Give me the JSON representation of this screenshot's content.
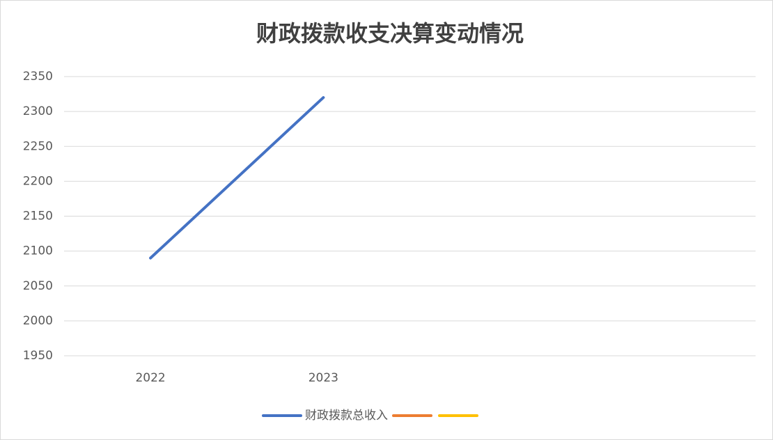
{
  "chart_data": {
    "type": "line",
    "title": "财政拨款收支决算变动情况",
    "categories": [
      "2022",
      "2023",
      null,
      null
    ],
    "series": [
      {
        "name": "财政拨款总收入",
        "color": "#4472c4",
        "values": [
          2090,
          2320,
          null,
          null
        ]
      },
      {
        "color": "#ed7d31",
        "values": [
          null,
          null,
          null,
          null
        ]
      },
      {
        "color": "#ffc000",
        "values": [
          null,
          null,
          null,
          null
        ]
      }
    ],
    "ylim": [
      1950,
      2350
    ],
    "yticks": [
      1950,
      2000,
      2050,
      2100,
      2150,
      2200,
      2250,
      2300,
      2350
    ],
    "grid": true,
    "legend": "bottom"
  }
}
